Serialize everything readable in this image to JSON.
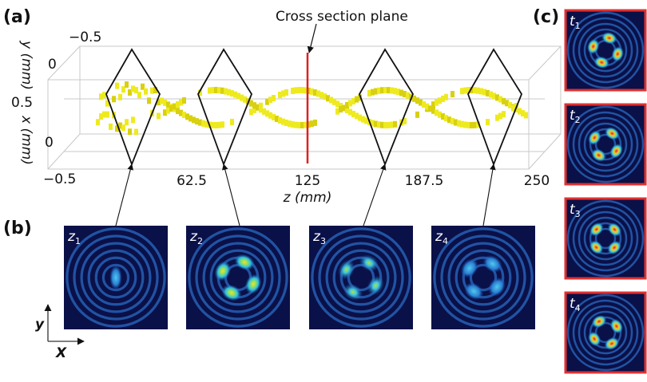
{
  "panel_labels": {
    "a": "(a)",
    "b": "(b)",
    "c": "(c)"
  },
  "annotation": "Cross section plane",
  "axes": {
    "y_label": "y (mm)",
    "y_ticks": [
      "−0.5",
      "0",
      "0.5"
    ],
    "x_label": "x (mm)",
    "x_ticks": [
      "0",
      "−0.5"
    ],
    "z_label": "z (mm)",
    "z_ticks": [
      "62.5",
      "125",
      "187.5",
      "250"
    ]
  },
  "cross_sections": [
    {
      "var": "z",
      "sub": "1"
    },
    {
      "var": "z",
      "sub": "2"
    },
    {
      "var": "z",
      "sub": "3"
    },
    {
      "var": "z",
      "sub": "4"
    }
  ],
  "time_frames": [
    {
      "var": "t",
      "sub": "1"
    },
    {
      "var": "t",
      "sub": "2"
    },
    {
      "var": "t",
      "sub": "3"
    },
    {
      "var": "t",
      "sub": "4"
    }
  ],
  "orientation": {
    "vertical": "y",
    "horizontal": "X"
  }
}
